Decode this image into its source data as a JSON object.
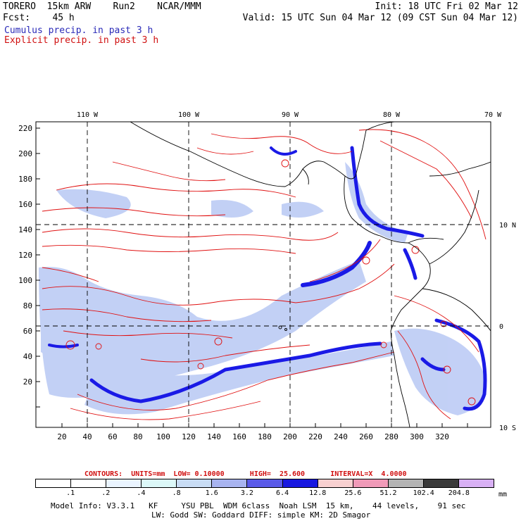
{
  "header": {
    "left_line1": "TORERO  15km ARW    Run2    NCAR/MMM",
    "left_line2": "Fcst:    45 h",
    "right_line1": "Init: 18 UTC Fri 02 Mar 12",
    "right_line2": "Valid: 15 UTC Sun 04 Mar 12 (09 CST Sun 04 Mar 12)"
  },
  "legend": {
    "cumulus": "Cumulus precip. in past 3 h",
    "explicit": "Explicit precip. in past 3 h"
  },
  "map": {
    "lon_labels": [
      "110 W",
      "100 W",
      "90 W",
      "80 W",
      "70 W"
    ],
    "lat_labels": [
      "10 N",
      "0",
      "10 S"
    ],
    "x_ticks": [
      "20",
      "40",
      "60",
      "80",
      "100",
      "120",
      "140",
      "160",
      "180",
      "200",
      "220",
      "240",
      "260",
      "280",
      "300",
      "320"
    ],
    "y_ticks": [
      "220",
      "200",
      "180",
      "160",
      "140",
      "120",
      "100",
      "80",
      "60",
      "40",
      "20"
    ],
    "colors": {
      "explicit_contour": "#e01010",
      "cumulus_heavy": "#1a1ae6",
      "cumulus_light": "#b8c8f4",
      "coastline": "#000000"
    }
  },
  "contours": {
    "line": "CONTOURS:  UNITS=mm  LOW= 0.10000      HIGH=  25.600      INTERVAL=X  4.0000"
  },
  "colorbar": {
    "labels": [
      ".1",
      ".2",
      ".4",
      ".8",
      "1.6",
      "3.2",
      "6.4",
      "12.8",
      "25.6",
      "51.2",
      "102.4",
      "204.8"
    ],
    "units": "mm",
    "colors": [
      "#ffffff",
      "#ffffff",
      "#eaf4ff",
      "#dcf8f8",
      "#c8dcf4",
      "#a8b4f0",
      "#5a5ae8",
      "#1818e0",
      "#f8d0d0",
      "#f09ab8",
      "#b4b4b4",
      "#3a3a3a",
      "#d8b0f4"
    ]
  },
  "model_info": {
    "line1": "Model Info: V3.3.1   KF     YSU PBL  WDM 6class  Noah LSM  15 km,    44 levels,    91 sec",
    "line2": "LW: Godd SW: Goddard DIFF: simple KM: 2D Smagor"
  }
}
